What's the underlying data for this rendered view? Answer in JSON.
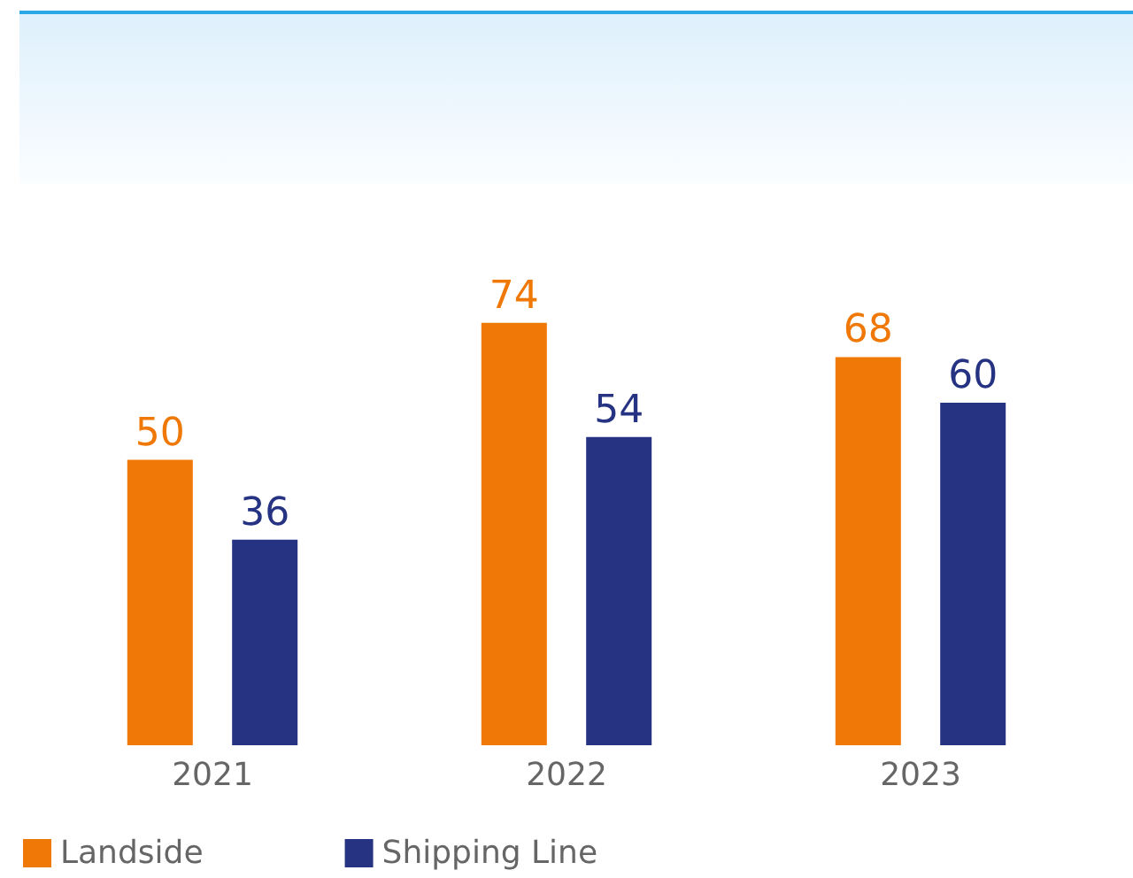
{
  "chart_data": {
    "type": "bar",
    "categories": [
      "2021",
      "2022",
      "2023"
    ],
    "series": [
      {
        "name": "Landside",
        "color": "#f07806",
        "values": [
          50,
          74,
          68
        ]
      },
      {
        "name": "Shipping Line",
        "color": "#263382",
        "values": [
          36,
          54,
          60
        ]
      }
    ],
    "data_labels": true,
    "legend": "bottom left"
  }
}
